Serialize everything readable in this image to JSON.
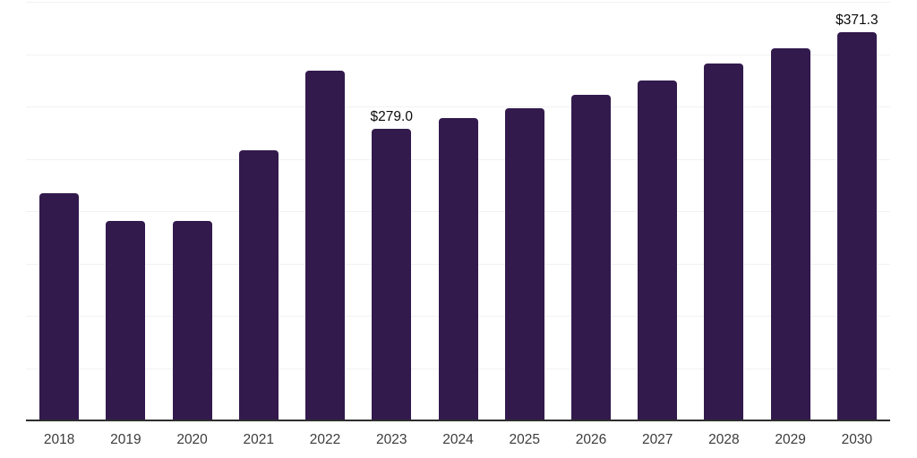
{
  "chart": {
    "background_color": "#ffffff",
    "bar_color": "#321A4D",
    "gridline_color": "#F2F2F2",
    "axis_line_color": "#2E2E2E",
    "tick_label_color": "#3C3C3C",
    "data_label_color": "#0A0A0A"
  },
  "chart_data": {
    "type": "bar",
    "title": "",
    "xlabel": "",
    "ylabel": "",
    "categories": [
      "2018",
      "2019",
      "2020",
      "2021",
      "2022",
      "2023",
      "2024",
      "2025",
      "2026",
      "2027",
      "2028",
      "2029",
      "2030"
    ],
    "values": [
      217,
      190.5,
      190.5,
      258.5,
      334.5,
      279.0,
      288.5,
      298.5,
      311.5,
      325,
      341,
      355.5,
      371.3
    ],
    "data_labels": [
      "",
      "",
      "",
      "",
      "",
      "$279.0",
      "",
      "",
      "",
      "",
      "",
      "",
      "$371.3"
    ],
    "ylim": [
      0,
      400
    ],
    "gridline_step": 50,
    "grid": "horizontal",
    "legend_position": "none",
    "y_tick_labels_visible": false
  }
}
